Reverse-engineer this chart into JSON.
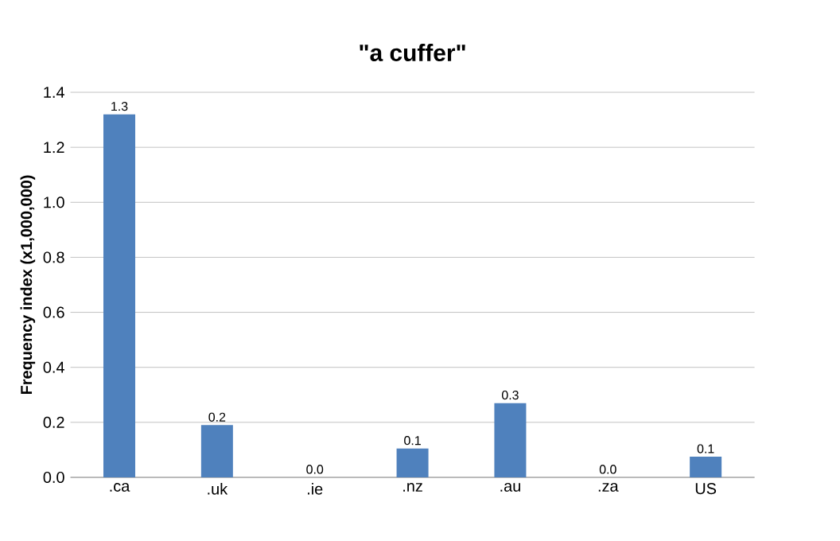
{
  "chart_data": {
    "type": "bar",
    "title": "\"a cuffer\"",
    "ylabel": "Frequency index (x1,000,000)",
    "categories": [
      ".ca",
      ".uk",
      ".ie",
      ".nz",
      ".au",
      ".za",
      "US"
    ],
    "values": [
      1.32,
      0.19,
      0.0,
      0.105,
      0.27,
      0.0,
      0.075
    ],
    "value_labels": [
      "1.3",
      "0.2",
      "0.0",
      "0.1",
      "0.3",
      "0.0",
      "0.1"
    ],
    "color": "#4f81bd",
    "ylim": [
      0,
      1.4
    ],
    "yticks": [
      {
        "value": 0,
        "label": "0.0"
      },
      0.2,
      0.4,
      0.6,
      0.8,
      {
        "value": 1,
        "label": "1.0"
      },
      1.2,
      1.4
    ],
    "grid": "y"
  }
}
